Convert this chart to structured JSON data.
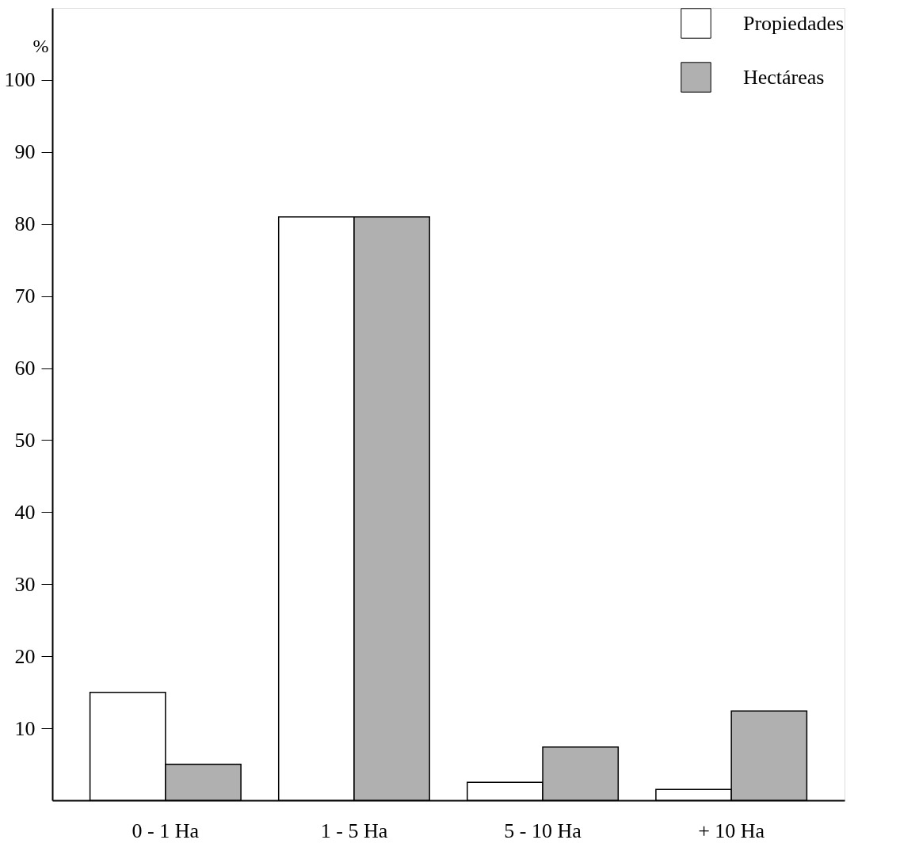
{
  "chart_data": {
    "type": "bar",
    "ylabel": "%",
    "categories": [
      "0 - 1  Ha",
      "1 - 5  Ha",
      "5 - 10  Ha",
      "+ 10  Ha"
    ],
    "series": [
      {
        "name": "Propiedades",
        "color": "#ffffff",
        "values": [
          15,
          81,
          2.5,
          1.5
        ]
      },
      {
        "name": "Hectáreas",
        "color": "#b0b0b0",
        "values": [
          5,
          81,
          7.4,
          12.4
        ]
      }
    ],
    "ylim": [
      0,
      110
    ],
    "yticks": [
      10,
      20,
      30,
      40,
      50,
      60,
      70,
      80,
      90,
      100
    ],
    "grid": false,
    "legend": "top right"
  }
}
